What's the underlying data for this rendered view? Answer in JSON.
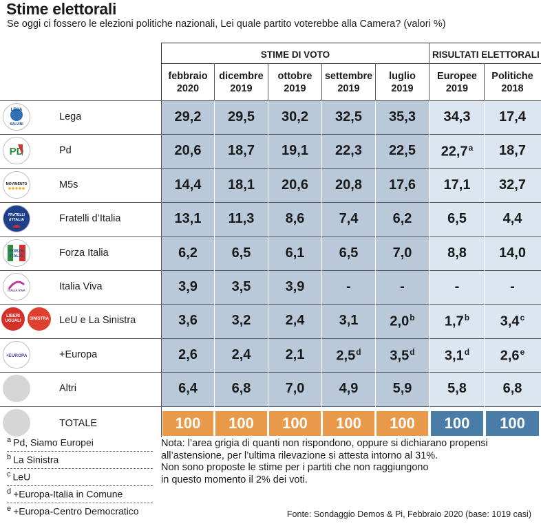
{
  "title": "Stime elettorali",
  "subtitle": "Se oggi ci fossero le elezioni politiche nazionali, Lei quale partito voterebbe alla Camera? (valori %)",
  "groups": {
    "stime": "STIME DI VOTO",
    "risultati": "RISULTATI ELETTORALI"
  },
  "columns": [
    {
      "l1": "febbraio",
      "l2": "2020"
    },
    {
      "l1": "dicembre",
      "l2": "2019"
    },
    {
      "l1": "ottobre",
      "l2": "2019"
    },
    {
      "l1": "settembre",
      "l2": "2019"
    },
    {
      "l1": "luglio",
      "l2": "2019"
    },
    {
      "l1": "Europee",
      "l2": "2019"
    },
    {
      "l1": "Politiche",
      "l2": "2018"
    }
  ],
  "rows": [
    {
      "party": "Lega",
      "logo": "lega-logo",
      "values": [
        {
          "v": "29,2",
          "s": ""
        },
        {
          "v": "29,5",
          "s": ""
        },
        {
          "v": "30,2",
          "s": ""
        },
        {
          "v": "32,5",
          "s": ""
        },
        {
          "v": "35,3",
          "s": ""
        },
        {
          "v": "34,3",
          "s": ""
        },
        {
          "v": "17,4",
          "s": ""
        }
      ]
    },
    {
      "party": "Pd",
      "logo": "pd-logo",
      "values": [
        {
          "v": "20,6",
          "s": ""
        },
        {
          "v": "18,7",
          "s": ""
        },
        {
          "v": "19,1",
          "s": ""
        },
        {
          "v": "22,3",
          "s": ""
        },
        {
          "v": "22,5",
          "s": ""
        },
        {
          "v": "22,7",
          "s": "a"
        },
        {
          "v": "18,7",
          "s": ""
        }
      ]
    },
    {
      "party": "M5s",
      "logo": "m5s-logo",
      "values": [
        {
          "v": "14,4",
          "s": ""
        },
        {
          "v": "18,1",
          "s": ""
        },
        {
          "v": "20,6",
          "s": ""
        },
        {
          "v": "20,8",
          "s": ""
        },
        {
          "v": "17,6",
          "s": ""
        },
        {
          "v": "17,1",
          "s": ""
        },
        {
          "v": "32,7",
          "s": ""
        }
      ]
    },
    {
      "party": "Fratelli d’Italia",
      "logo": "fdi-logo",
      "values": [
        {
          "v": "13,1",
          "s": ""
        },
        {
          "v": "11,3",
          "s": ""
        },
        {
          "v": "8,6",
          "s": ""
        },
        {
          "v": "7,4",
          "s": ""
        },
        {
          "v": "6,2",
          "s": ""
        },
        {
          "v": "6,5",
          "s": ""
        },
        {
          "v": "4,4",
          "s": ""
        }
      ]
    },
    {
      "party": "Forza Italia",
      "logo": "fi-logo",
      "values": [
        {
          "v": "6,2",
          "s": ""
        },
        {
          "v": "6,5",
          "s": ""
        },
        {
          "v": "6,1",
          "s": ""
        },
        {
          "v": "6,5",
          "s": ""
        },
        {
          "v": "7,0",
          "s": ""
        },
        {
          "v": "8,8",
          "s": ""
        },
        {
          "v": "14,0",
          "s": ""
        }
      ]
    },
    {
      "party": "Italia Viva",
      "logo": "iv-logo",
      "values": [
        {
          "v": "3,9",
          "s": ""
        },
        {
          "v": "3,5",
          "s": ""
        },
        {
          "v": "3,9",
          "s": ""
        },
        {
          "v": "-",
          "s": ""
        },
        {
          "v": "-",
          "s": ""
        },
        {
          "v": "-",
          "s": ""
        },
        {
          "v": "-",
          "s": ""
        }
      ]
    },
    {
      "party": "LeU e La Sinistra",
      "logo": "leu-logo",
      "values": [
        {
          "v": "3,6",
          "s": ""
        },
        {
          "v": "3,2",
          "s": ""
        },
        {
          "v": "2,4",
          "s": ""
        },
        {
          "v": "3,1",
          "s": ""
        },
        {
          "v": "2,0",
          "s": "b"
        },
        {
          "v": "1,7",
          "s": "b"
        },
        {
          "v": "3,4",
          "s": "c"
        }
      ]
    },
    {
      "party": "+Europa",
      "logo": "europa-logo",
      "values": [
        {
          "v": "2,6",
          "s": ""
        },
        {
          "v": "2,4",
          "s": ""
        },
        {
          "v": "2,1",
          "s": ""
        },
        {
          "v": "2,5",
          "s": "d"
        },
        {
          "v": "3,5",
          "s": "d"
        },
        {
          "v": "3,1",
          "s": "d"
        },
        {
          "v": "2,6",
          "s": "e"
        }
      ]
    },
    {
      "party": "Altri",
      "logo": "altri-logo",
      "values": [
        {
          "v": "6,4",
          "s": ""
        },
        {
          "v": "6,8",
          "s": ""
        },
        {
          "v": "7,0",
          "s": ""
        },
        {
          "v": "4,9",
          "s": ""
        },
        {
          "v": "5,9",
          "s": ""
        },
        {
          "v": "5,8",
          "s": ""
        },
        {
          "v": "6,8",
          "s": ""
        }
      ]
    }
  ],
  "total": {
    "label": "TOTALE",
    "values": [
      "100",
      "100",
      "100",
      "100",
      "100",
      "100",
      "100"
    ]
  },
  "logo_text": {
    "lega": "LEGA",
    "lega_sub": "SALVINI",
    "pd": "PD",
    "m5s": "MOVIMENTO",
    "fdi_1": "FRATELLI",
    "fdi_2": "d’ITALIA",
    "fi_1": "FORZA",
    "fi_2": "ITALIA",
    "iv": "ITALIA VIVA",
    "leu_1": "LIBERI",
    "leu_2": "UGUALI",
    "sin": "SINISTRA",
    "europa": "+EUROPA"
  },
  "footnotes": [
    {
      "letter": "a",
      "text": "Pd, Siamo Europei"
    },
    {
      "letter": "b",
      "text": "La Sinistra"
    },
    {
      "letter": "c",
      "text": "LeU"
    },
    {
      "letter": "d",
      "text": "+Europa-Italia in Comune"
    },
    {
      "letter": "e",
      "text": "+Europa-Centro Democratico"
    }
  ],
  "nota": [
    "Nota: l’area grigia di quanti non rispondono, oppure si dichiarano propensi",
    "all’astensione, per l’ultima rilevazione si attesta intorno al 31%.",
    "Non sono proposte le stime per i partiti che non raggiungono",
    "in questo momento il 2% dei voti."
  ],
  "fonte": "Fonte: Sondaggio Demos & Pi, Febbraio 2020 (base: 1019 casi)",
  "colors": {
    "stime_bg": "#b9c9da",
    "risultati_bg": "#dbe6f1",
    "total_orange": "#e8994a",
    "total_blue": "#4a7ca8"
  }
}
